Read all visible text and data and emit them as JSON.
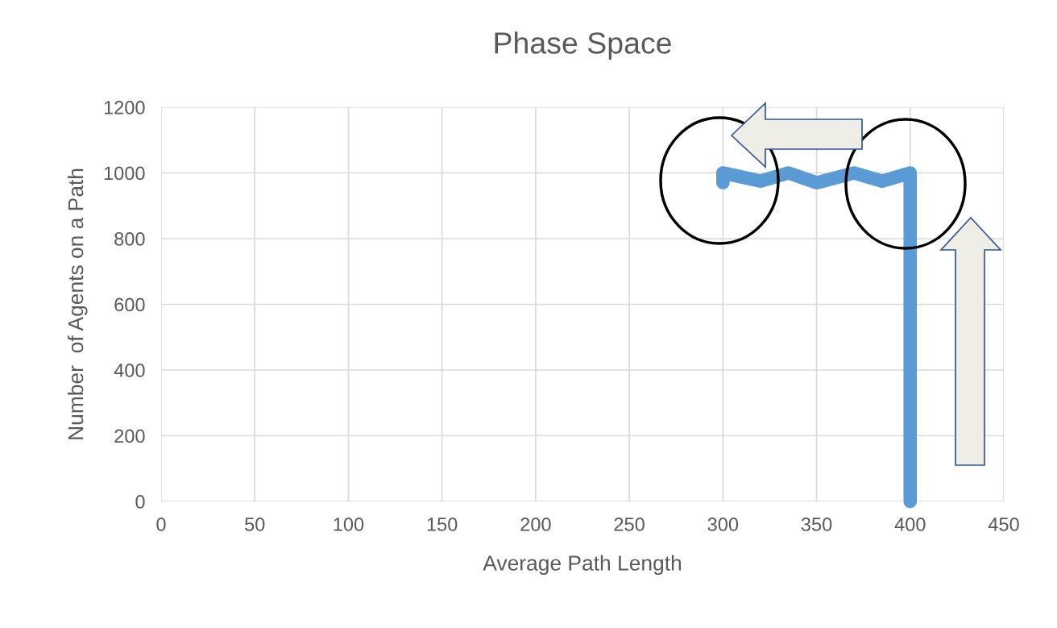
{
  "chart_data": {
    "type": "line",
    "title": "Phase Space",
    "xlabel": "Average Path Length",
    "ylabel": "Number  of Agents on a Path",
    "x": [
      400,
      400,
      385,
      370,
      350,
      335,
      320,
      300,
      300
    ],
    "series": [
      {
        "color": "#5b9bd5",
        "values": [
          0,
          1000,
          975,
          1000,
          970,
          1000,
          975,
          1000,
          970
        ]
      }
    ],
    "xlim": [
      0,
      450
    ],
    "xticks": [
      0,
      50,
      100,
      150,
      200,
      250,
      300,
      350,
      400,
      450
    ],
    "ylim": [
      0,
      1200
    ],
    "yticks": [
      0,
      200,
      400,
      600,
      800,
      1000,
      1200
    ],
    "grid": true,
    "line_style": "solid"
  }
}
